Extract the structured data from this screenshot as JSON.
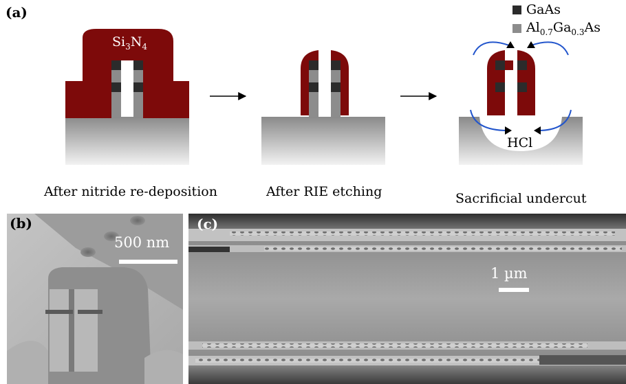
{
  "panel_a": {
    "label": "(a)",
    "legend": [
      {
        "name": "GaAs",
        "color": "#2b2b2b"
      },
      {
        "name_parts": [
          "Al",
          "0.7",
          "Ga",
          "0.3",
          "As"
        ],
        "color": "#8c8c8c"
      }
    ],
    "material_label_parts": [
      "Si",
      "3",
      "N",
      "4"
    ],
    "etchant": "HCl",
    "steps": [
      {
        "caption": "After nitride re-deposition"
      },
      {
        "caption": "After RIE etching"
      },
      {
        "caption": "Sacrificial undercut"
      }
    ],
    "colors": {
      "nitride": "#7d0a0a",
      "gaas": "#2b2b2b",
      "algaas": "#8c8c8c",
      "arrow_blue": "#2255cc"
    }
  },
  "panel_b": {
    "label": "(b)",
    "scale_bar": "500 nm"
  },
  "panel_c": {
    "label": "(c)",
    "scale_bar": "1 µm"
  }
}
